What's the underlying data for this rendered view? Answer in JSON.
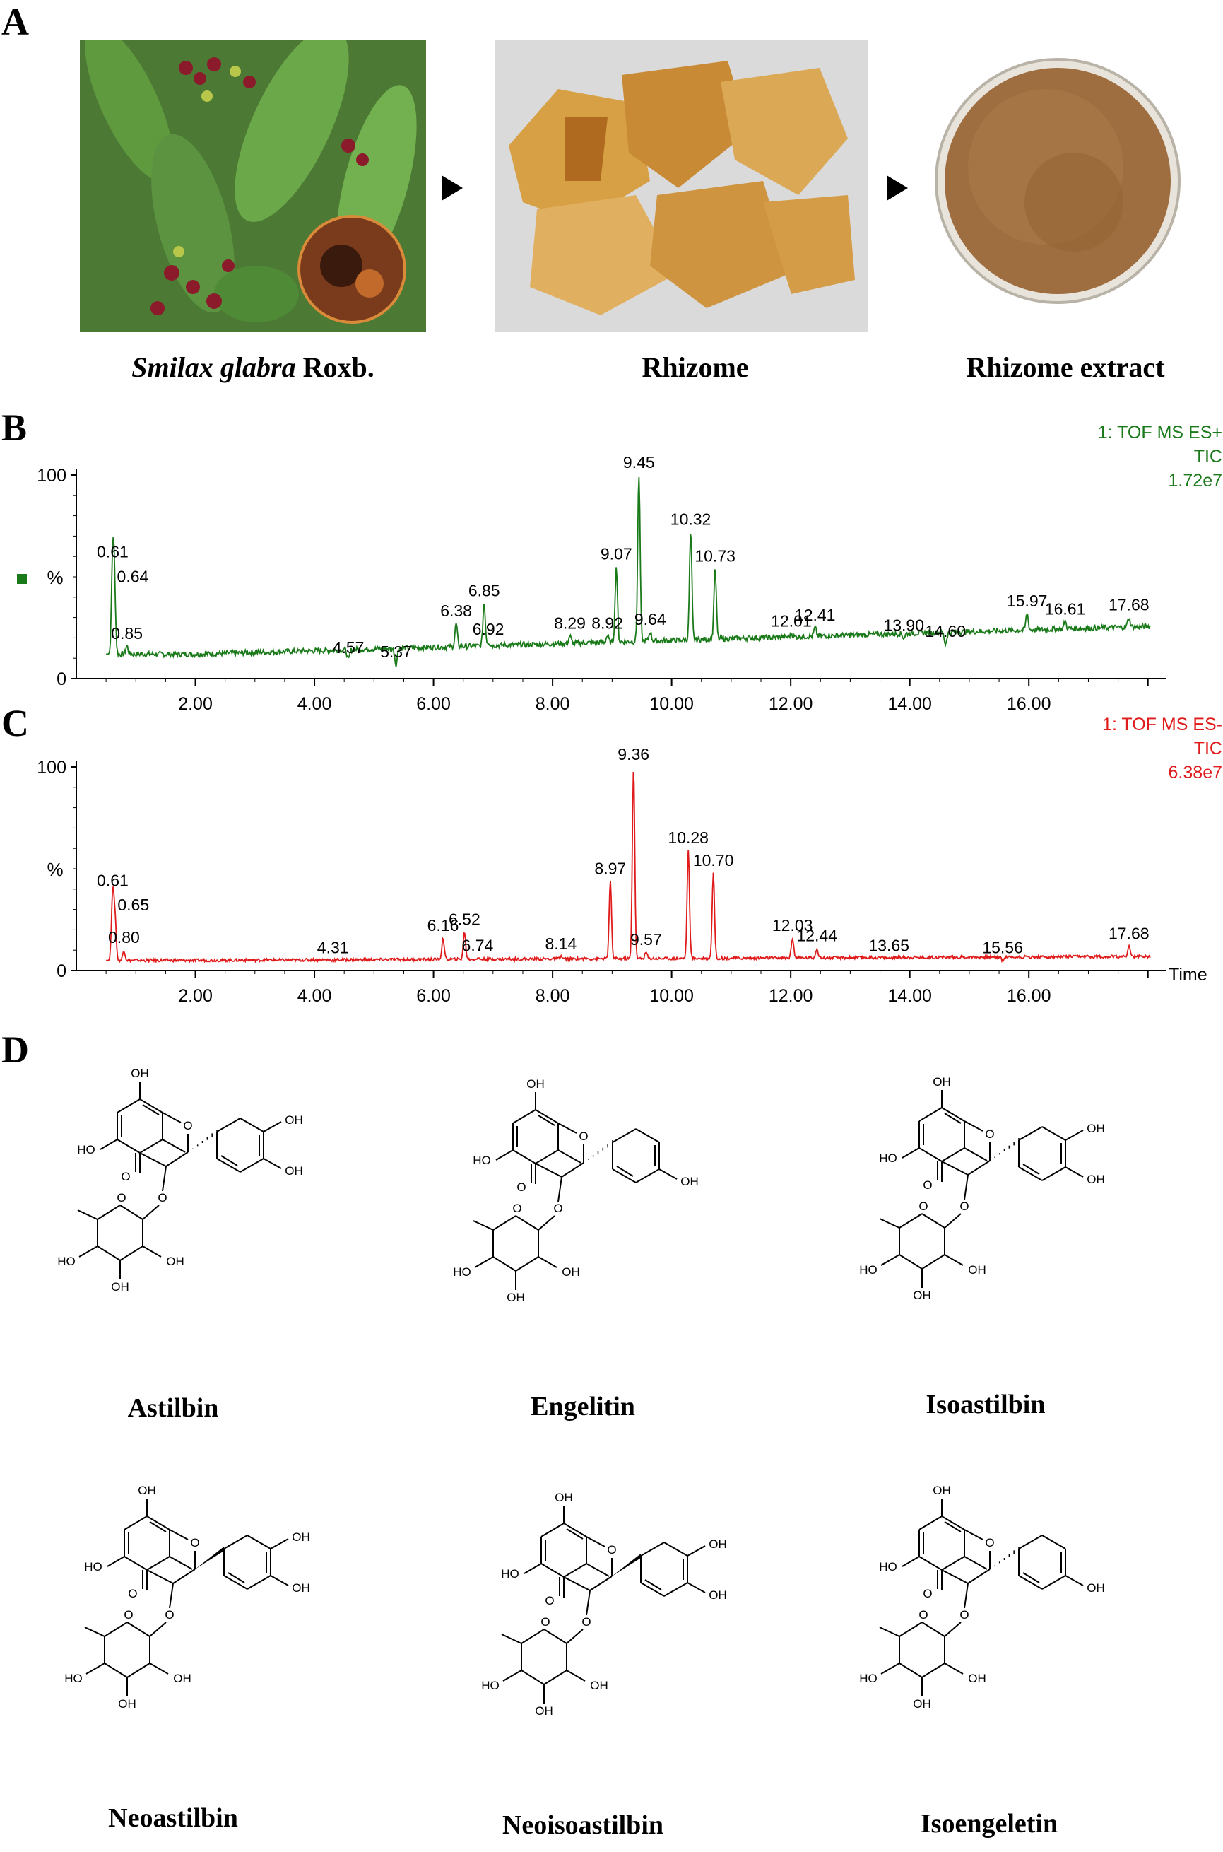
{
  "panels": {
    "a": "A",
    "b": "B",
    "c": "C",
    "d": "D"
  },
  "photos": [
    {
      "caption_italic": "Smilax glabra",
      "caption_rest": " Roxb."
    },
    {
      "caption_italic": "",
      "caption_rest": "Rhizome"
    },
    {
      "caption_italic": "",
      "caption_rest": "Rhizome extract"
    }
  ],
  "chart_data": [
    {
      "type": "line",
      "title_lines": [
        "1: TOF MS ES+",
        "TIC",
        "1.72e7"
      ],
      "ylabel": "%",
      "xlabel": "",
      "ylim": [
        0,
        100
      ],
      "xlim": [
        0,
        18.3
      ],
      "xticks": [
        "2.00",
        "4.00",
        "6.00",
        "8.00",
        "10.00",
        "12.00",
        "14.00",
        "16.00"
      ],
      "yticks": [
        "0",
        "100"
      ],
      "color": "#1a7a1a",
      "peaks": [
        {
          "x": 0.61,
          "y": 56,
          "label": "0.61"
        },
        {
          "x": 0.64,
          "y": 44,
          "label": "0.64"
        },
        {
          "x": 0.85,
          "y": 16,
          "label": "0.85"
        },
        {
          "x": 4.57,
          "y": 9,
          "label": "4.57"
        },
        {
          "x": 5.37,
          "y": 7,
          "label": "5.37"
        },
        {
          "x": 6.38,
          "y": 27,
          "label": "6.38"
        },
        {
          "x": 6.85,
          "y": 37,
          "label": "6.85"
        },
        {
          "x": 6.92,
          "y": 18,
          "label": "6.92"
        },
        {
          "x": 8.29,
          "y": 21,
          "label": "8.29"
        },
        {
          "x": 8.92,
          "y": 21,
          "label": "8.92"
        },
        {
          "x": 9.07,
          "y": 55,
          "label": "9.07"
        },
        {
          "x": 9.45,
          "y": 100,
          "label": "9.45"
        },
        {
          "x": 9.64,
          "y": 23,
          "label": "9.64"
        },
        {
          "x": 10.32,
          "y": 72,
          "label": "10.32"
        },
        {
          "x": 10.73,
          "y": 54,
          "label": "10.73"
        },
        {
          "x": 12.01,
          "y": 22,
          "label": "12.01"
        },
        {
          "x": 12.41,
          "y": 25,
          "label": "12.41"
        },
        {
          "x": 13.9,
          "y": 20,
          "label": "13.90"
        },
        {
          "x": 14.6,
          "y": 17,
          "label": "14.60"
        },
        {
          "x": 15.97,
          "y": 32,
          "label": "15.97"
        },
        {
          "x": 16.61,
          "y": 28,
          "label": "16.61"
        },
        {
          "x": 17.68,
          "y": 30,
          "label": "17.68"
        }
      ]
    },
    {
      "type": "line",
      "title_lines": [
        "1: TOF MS ES-",
        "TIC",
        "6.38e7"
      ],
      "ylabel": "%",
      "xlabel": "Time",
      "ylim": [
        0,
        100
      ],
      "xlim": [
        0,
        18.3
      ],
      "xticks": [
        "2.00",
        "4.00",
        "6.00",
        "8.00",
        "10.00",
        "12.00",
        "14.00",
        "16.00"
      ],
      "yticks": [
        "0",
        "100"
      ],
      "color": "#e01b1b",
      "peaks": [
        {
          "x": 0.61,
          "y": 38,
          "label": "0.61"
        },
        {
          "x": 0.65,
          "y": 26,
          "label": "0.65"
        },
        {
          "x": 0.8,
          "y": 10,
          "label": "0.80"
        },
        {
          "x": 4.31,
          "y": 5,
          "label": "4.31"
        },
        {
          "x": 6.16,
          "y": 16,
          "label": "6.16"
        },
        {
          "x": 6.52,
          "y": 19,
          "label": "6.52"
        },
        {
          "x": 6.74,
          "y": 6,
          "label": "6.74"
        },
        {
          "x": 8.14,
          "y": 7,
          "label": "8.14"
        },
        {
          "x": 8.97,
          "y": 44,
          "label": "8.97"
        },
        {
          "x": 9.36,
          "y": 100,
          "label": "9.36"
        },
        {
          "x": 9.57,
          "y": 9,
          "label": "9.57"
        },
        {
          "x": 10.28,
          "y": 59,
          "label": "10.28"
        },
        {
          "x": 10.7,
          "y": 48,
          "label": "10.70"
        },
        {
          "x": 12.03,
          "y": 16,
          "label": "12.03"
        },
        {
          "x": 12.44,
          "y": 11,
          "label": "12.44"
        },
        {
          "x": 13.65,
          "y": 6,
          "label": "13.65"
        },
        {
          "x": 15.56,
          "y": 5,
          "label": "15.56"
        },
        {
          "x": 17.68,
          "y": 12,
          "label": "17.68"
        }
      ]
    }
  ],
  "compounds": [
    {
      "name": "Astilbin",
      "bond": "dash",
      "rings": "catechol"
    },
    {
      "name": "Engelitin",
      "bond": "dash",
      "rings": "phenol"
    },
    {
      "name": "Isoastilbin",
      "bond": "dash",
      "rings": "catechol"
    },
    {
      "name": "Neoastilbin",
      "bond": "wedge",
      "rings": "catechol"
    },
    {
      "name": "Neoisoastilbin",
      "bond": "wedge",
      "rings": "catechol"
    },
    {
      "name": "Isoengeletin",
      "bond": "dash",
      "rings": "phenol"
    }
  ],
  "atom_labels": {
    "oh": "OH",
    "ho": "HO",
    "o": "O"
  }
}
